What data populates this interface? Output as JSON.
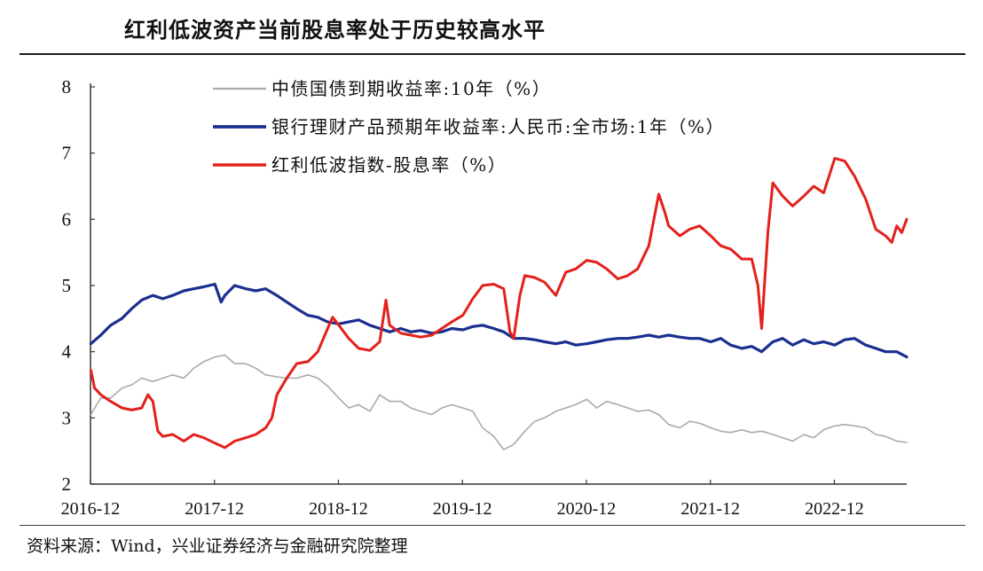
{
  "title": "红利低波资产当前股息率处于历史较高水平",
  "source": "资料来源：Wind，兴业证券经济与金融研究院整理",
  "chart_data": {
    "type": "line",
    "title": "红利低波资产当前股息率处于历史较高水平",
    "ylim": [
      2,
      8
    ],
    "yticks": [
      "2",
      "3",
      "4",
      "5",
      "6",
      "7",
      "8"
    ],
    "xlim": [
      2016.917,
      2023.5
    ],
    "xticks": [
      "2016-12",
      "2017-12",
      "2018-12",
      "2019-12",
      "2020-12",
      "2021-12",
      "2022-12"
    ],
    "grid": false,
    "legend_position": "top-left",
    "series": [
      {
        "name": "中债国债到期收益率:10年（%）",
        "color": "#aaaaaa",
        "points": [
          [
            2016.92,
            3.05
          ],
          [
            2017.0,
            3.3
          ],
          [
            2017.08,
            3.3
          ],
          [
            2017.17,
            3.45
          ],
          [
            2017.25,
            3.5
          ],
          [
            2017.33,
            3.6
          ],
          [
            2017.42,
            3.55
          ],
          [
            2017.5,
            3.6
          ],
          [
            2017.58,
            3.65
          ],
          [
            2017.67,
            3.6
          ],
          [
            2017.75,
            3.75
          ],
          [
            2017.83,
            3.85
          ],
          [
            2017.92,
            3.92
          ],
          [
            2018.0,
            3.95
          ],
          [
            2018.08,
            3.82
          ],
          [
            2018.17,
            3.82
          ],
          [
            2018.25,
            3.75
          ],
          [
            2018.33,
            3.65
          ],
          [
            2018.42,
            3.62
          ],
          [
            2018.5,
            3.6
          ],
          [
            2018.58,
            3.6
          ],
          [
            2018.67,
            3.65
          ],
          [
            2018.75,
            3.6
          ],
          [
            2018.83,
            3.48
          ],
          [
            2018.92,
            3.3
          ],
          [
            2019.0,
            3.15
          ],
          [
            2019.08,
            3.2
          ],
          [
            2019.17,
            3.1
          ],
          [
            2019.25,
            3.35
          ],
          [
            2019.33,
            3.25
          ],
          [
            2019.42,
            3.25
          ],
          [
            2019.5,
            3.15
          ],
          [
            2019.58,
            3.1
          ],
          [
            2019.67,
            3.05
          ],
          [
            2019.75,
            3.15
          ],
          [
            2019.83,
            3.2
          ],
          [
            2019.92,
            3.15
          ],
          [
            2020.0,
            3.1
          ],
          [
            2020.08,
            2.85
          ],
          [
            2020.17,
            2.72
          ],
          [
            2020.25,
            2.52
          ],
          [
            2020.33,
            2.6
          ],
          [
            2020.42,
            2.8
          ],
          [
            2020.5,
            2.95
          ],
          [
            2020.58,
            3.0
          ],
          [
            2020.67,
            3.1
          ],
          [
            2020.75,
            3.15
          ],
          [
            2020.83,
            3.2
          ],
          [
            2020.92,
            3.28
          ],
          [
            2021.0,
            3.15
          ],
          [
            2021.08,
            3.25
          ],
          [
            2021.17,
            3.2
          ],
          [
            2021.25,
            3.15
          ],
          [
            2021.33,
            3.1
          ],
          [
            2021.42,
            3.12
          ],
          [
            2021.5,
            3.05
          ],
          [
            2021.58,
            2.9
          ],
          [
            2021.67,
            2.85
          ],
          [
            2021.75,
            2.95
          ],
          [
            2021.83,
            2.92
          ],
          [
            2021.92,
            2.85
          ],
          [
            2022.0,
            2.8
          ],
          [
            2022.08,
            2.78
          ],
          [
            2022.17,
            2.82
          ],
          [
            2022.25,
            2.78
          ],
          [
            2022.33,
            2.8
          ],
          [
            2022.42,
            2.75
          ],
          [
            2022.5,
            2.7
          ],
          [
            2022.58,
            2.65
          ],
          [
            2022.67,
            2.75
          ],
          [
            2022.75,
            2.7
          ],
          [
            2022.83,
            2.82
          ],
          [
            2022.92,
            2.88
          ],
          [
            2023.0,
            2.9
          ],
          [
            2023.08,
            2.88
          ],
          [
            2023.17,
            2.85
          ],
          [
            2023.25,
            2.75
          ],
          [
            2023.33,
            2.72
          ],
          [
            2023.42,
            2.65
          ],
          [
            2023.5,
            2.63
          ]
        ]
      },
      {
        "name": "银行理财产品预期年收益率:人民币:全市场:1年（%）",
        "color": "#1a2f8f",
        "points": [
          [
            2016.92,
            4.12
          ],
          [
            2017.0,
            4.25
          ],
          [
            2017.08,
            4.4
          ],
          [
            2017.17,
            4.5
          ],
          [
            2017.25,
            4.65
          ],
          [
            2017.33,
            4.78
          ],
          [
            2017.42,
            4.85
          ],
          [
            2017.5,
            4.8
          ],
          [
            2017.58,
            4.85
          ],
          [
            2017.67,
            4.92
          ],
          [
            2017.75,
            4.95
          ],
          [
            2017.83,
            4.98
          ],
          [
            2017.92,
            5.02
          ],
          [
            2017.97,
            4.75
          ],
          [
            2018.0,
            4.85
          ],
          [
            2018.08,
            5.0
          ],
          [
            2018.17,
            4.95
          ],
          [
            2018.25,
            4.92
          ],
          [
            2018.33,
            4.95
          ],
          [
            2018.42,
            4.85
          ],
          [
            2018.5,
            4.75
          ],
          [
            2018.58,
            4.65
          ],
          [
            2018.67,
            4.55
          ],
          [
            2018.75,
            4.52
          ],
          [
            2018.83,
            4.45
          ],
          [
            2018.92,
            4.42
          ],
          [
            2019.0,
            4.45
          ],
          [
            2019.08,
            4.48
          ],
          [
            2019.17,
            4.4
          ],
          [
            2019.25,
            4.35
          ],
          [
            2019.33,
            4.3
          ],
          [
            2019.42,
            4.35
          ],
          [
            2019.5,
            4.3
          ],
          [
            2019.58,
            4.32
          ],
          [
            2019.67,
            4.28
          ],
          [
            2019.75,
            4.3
          ],
          [
            2019.83,
            4.35
          ],
          [
            2019.92,
            4.33
          ],
          [
            2020.0,
            4.38
          ],
          [
            2020.08,
            4.4
          ],
          [
            2020.17,
            4.35
          ],
          [
            2020.25,
            4.3
          ],
          [
            2020.33,
            4.2
          ],
          [
            2020.42,
            4.2
          ],
          [
            2020.5,
            4.18
          ],
          [
            2020.58,
            4.15
          ],
          [
            2020.67,
            4.12
          ],
          [
            2020.75,
            4.15
          ],
          [
            2020.83,
            4.1
          ],
          [
            2020.92,
            4.12
          ],
          [
            2021.0,
            4.15
          ],
          [
            2021.08,
            4.18
          ],
          [
            2021.17,
            4.2
          ],
          [
            2021.25,
            4.2
          ],
          [
            2021.33,
            4.22
          ],
          [
            2021.42,
            4.25
          ],
          [
            2021.5,
            4.22
          ],
          [
            2021.58,
            4.25
          ],
          [
            2021.67,
            4.22
          ],
          [
            2021.75,
            4.2
          ],
          [
            2021.83,
            4.2
          ],
          [
            2021.92,
            4.15
          ],
          [
            2022.0,
            4.2
          ],
          [
            2022.08,
            4.1
          ],
          [
            2022.17,
            4.05
          ],
          [
            2022.25,
            4.08
          ],
          [
            2022.33,
            4.0
          ],
          [
            2022.42,
            4.15
          ],
          [
            2022.5,
            4.2
          ],
          [
            2022.58,
            4.1
          ],
          [
            2022.67,
            4.18
          ],
          [
            2022.75,
            4.12
          ],
          [
            2022.83,
            4.15
          ],
          [
            2022.92,
            4.1
          ],
          [
            2023.0,
            4.18
          ],
          [
            2023.08,
            4.2
          ],
          [
            2023.17,
            4.1
          ],
          [
            2023.25,
            4.05
          ],
          [
            2023.33,
            4.0
          ],
          [
            2023.42,
            4.0
          ],
          [
            2023.5,
            3.92
          ]
        ]
      },
      {
        "name": "红利低波指数-股息率（%）",
        "color": "#e3201b",
        "points": [
          [
            2016.92,
            3.72
          ],
          [
            2016.95,
            3.45
          ],
          [
            2017.0,
            3.35
          ],
          [
            2017.08,
            3.25
          ],
          [
            2017.17,
            3.15
          ],
          [
            2017.25,
            3.12
          ],
          [
            2017.33,
            3.15
          ],
          [
            2017.38,
            3.35
          ],
          [
            2017.42,
            3.25
          ],
          [
            2017.46,
            2.8
          ],
          [
            2017.5,
            2.72
          ],
          [
            2017.58,
            2.75
          ],
          [
            2017.67,
            2.65
          ],
          [
            2017.75,
            2.75
          ],
          [
            2017.83,
            2.7
          ],
          [
            2017.92,
            2.62
          ],
          [
            2018.0,
            2.55
          ],
          [
            2018.08,
            2.65
          ],
          [
            2018.17,
            2.7
          ],
          [
            2018.25,
            2.75
          ],
          [
            2018.33,
            2.85
          ],
          [
            2018.38,
            3.0
          ],
          [
            2018.42,
            3.35
          ],
          [
            2018.5,
            3.6
          ],
          [
            2018.58,
            3.82
          ],
          [
            2018.67,
            3.85
          ],
          [
            2018.75,
            4.0
          ],
          [
            2018.83,
            4.35
          ],
          [
            2018.87,
            4.52
          ],
          [
            2018.92,
            4.4
          ],
          [
            2019.0,
            4.2
          ],
          [
            2019.08,
            4.05
          ],
          [
            2019.17,
            4.02
          ],
          [
            2019.25,
            4.15
          ],
          [
            2019.3,
            4.78
          ],
          [
            2019.33,
            4.4
          ],
          [
            2019.42,
            4.28
          ],
          [
            2019.5,
            4.25
          ],
          [
            2019.58,
            4.22
          ],
          [
            2019.67,
            4.25
          ],
          [
            2019.75,
            4.35
          ],
          [
            2019.83,
            4.45
          ],
          [
            2019.92,
            4.55
          ],
          [
            2020.0,
            4.8
          ],
          [
            2020.08,
            5.0
          ],
          [
            2020.17,
            5.02
          ],
          [
            2020.25,
            4.95
          ],
          [
            2020.3,
            4.3
          ],
          [
            2020.33,
            4.2
          ],
          [
            2020.38,
            4.85
          ],
          [
            2020.42,
            5.15
          ],
          [
            2020.5,
            5.12
          ],
          [
            2020.58,
            5.05
          ],
          [
            2020.67,
            4.85
          ],
          [
            2020.75,
            5.2
          ],
          [
            2020.83,
            5.25
          ],
          [
            2020.92,
            5.38
          ],
          [
            2021.0,
            5.35
          ],
          [
            2021.08,
            5.25
          ],
          [
            2021.17,
            5.1
          ],
          [
            2021.25,
            5.15
          ],
          [
            2021.33,
            5.25
          ],
          [
            2021.42,
            5.6
          ],
          [
            2021.5,
            6.38
          ],
          [
            2021.55,
            6.1
          ],
          [
            2021.58,
            5.9
          ],
          [
            2021.67,
            5.75
          ],
          [
            2021.75,
            5.85
          ],
          [
            2021.83,
            5.9
          ],
          [
            2021.92,
            5.75
          ],
          [
            2022.0,
            5.6
          ],
          [
            2022.08,
            5.55
          ],
          [
            2022.17,
            5.4
          ],
          [
            2022.25,
            5.4
          ],
          [
            2022.3,
            5.0
          ],
          [
            2022.33,
            4.35
          ],
          [
            2022.38,
            5.8
          ],
          [
            2022.42,
            6.55
          ],
          [
            2022.5,
            6.35
          ],
          [
            2022.58,
            6.2
          ],
          [
            2022.67,
            6.35
          ],
          [
            2022.75,
            6.5
          ],
          [
            2022.83,
            6.4
          ],
          [
            2022.92,
            6.92
          ],
          [
            2023.0,
            6.88
          ],
          [
            2023.08,
            6.65
          ],
          [
            2023.17,
            6.3
          ],
          [
            2023.25,
            5.85
          ],
          [
            2023.33,
            5.75
          ],
          [
            2023.38,
            5.65
          ],
          [
            2023.42,
            5.9
          ],
          [
            2023.46,
            5.8
          ],
          [
            2023.5,
            6.0
          ]
        ]
      }
    ]
  }
}
